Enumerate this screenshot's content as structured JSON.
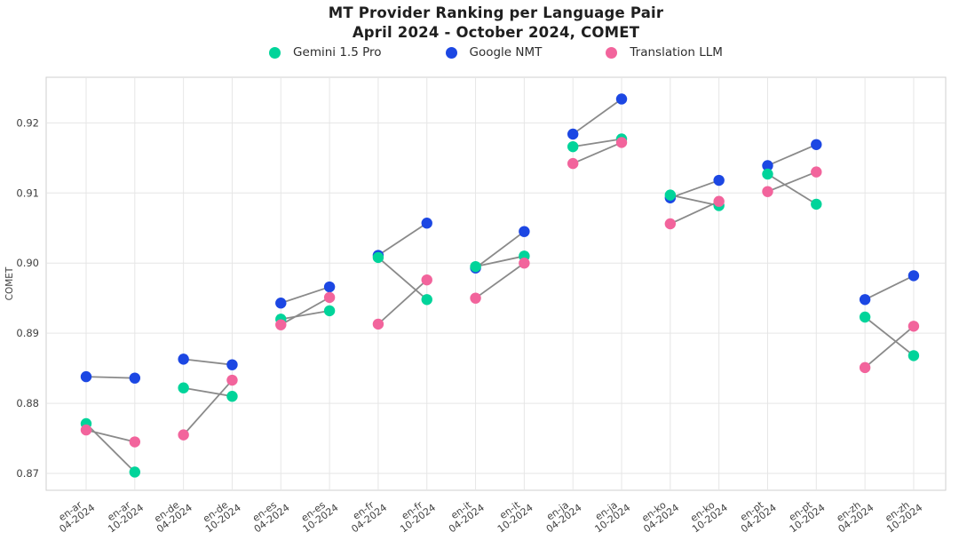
{
  "header": {
    "title_line1": "MT Provider Ranking per Language Pair",
    "title_line2": "April 2024 - October 2024, COMET"
  },
  "colors": {
    "gemini": "#00d49a",
    "nmt": "#1c47e3",
    "llm": "#f2649c",
    "connector": "#8a8a8a",
    "grid": "#e6e6e6",
    "plot_border": "#cfcfcf",
    "tick_text": "#3f3f3f"
  },
  "chart_data": {
    "type": "scatter",
    "title": "MT Provider Ranking per Language Pair — April 2024 - October 2024, COMET",
    "ylabel": "COMET",
    "xlabel": "",
    "grid": true,
    "legend_position": "top-center",
    "y_ticks": [
      0.87,
      0.88,
      0.89,
      0.9,
      0.91,
      0.92
    ],
    "ylim": [
      0.8676,
      0.9265
    ],
    "language_pairs": [
      "en-ar",
      "en-de",
      "en-es",
      "en-fr",
      "en-it",
      "en-ja",
      "en-ko",
      "en-pt",
      "en-zh"
    ],
    "periods": [
      "04-2024",
      "10-2024"
    ],
    "series": [
      {
        "name": "Gemini 1.5 Pro",
        "color": "#00d49a",
        "values": [
          [
            0.8771,
            0.8702
          ],
          [
            0.8822,
            0.881
          ],
          [
            0.892,
            0.8932
          ],
          [
            0.9008,
            0.8948
          ],
          [
            0.8995,
            0.901
          ],
          [
            0.9166,
            0.9177
          ],
          [
            0.9097,
            0.9082
          ],
          [
            0.9127,
            0.9084
          ],
          [
            0.8923,
            0.8868
          ]
        ]
      },
      {
        "name": "Google NMT",
        "color": "#1c47e3",
        "values": [
          [
            0.8838,
            0.8836
          ],
          [
            0.8863,
            0.8855
          ],
          [
            0.8943,
            0.8966
          ],
          [
            0.9011,
            0.9057
          ],
          [
            0.8993,
            0.9045
          ],
          [
            0.9184,
            0.9234
          ],
          [
            0.9093,
            0.9118
          ],
          [
            0.9139,
            0.9169
          ],
          [
            0.8948,
            0.8982
          ]
        ]
      },
      {
        "name": "Translation LLM",
        "color": "#f2649c",
        "values": [
          [
            0.8762,
            0.8745
          ],
          [
            0.8755,
            0.8833
          ],
          [
            0.8912,
            0.8951
          ],
          [
            0.8913,
            0.8976
          ],
          [
            0.895,
            0.9
          ],
          [
            0.9142,
            0.9172
          ],
          [
            0.9056,
            0.9088
          ],
          [
            0.9102,
            0.913
          ],
          [
            0.8851,
            0.891
          ]
        ]
      }
    ]
  }
}
